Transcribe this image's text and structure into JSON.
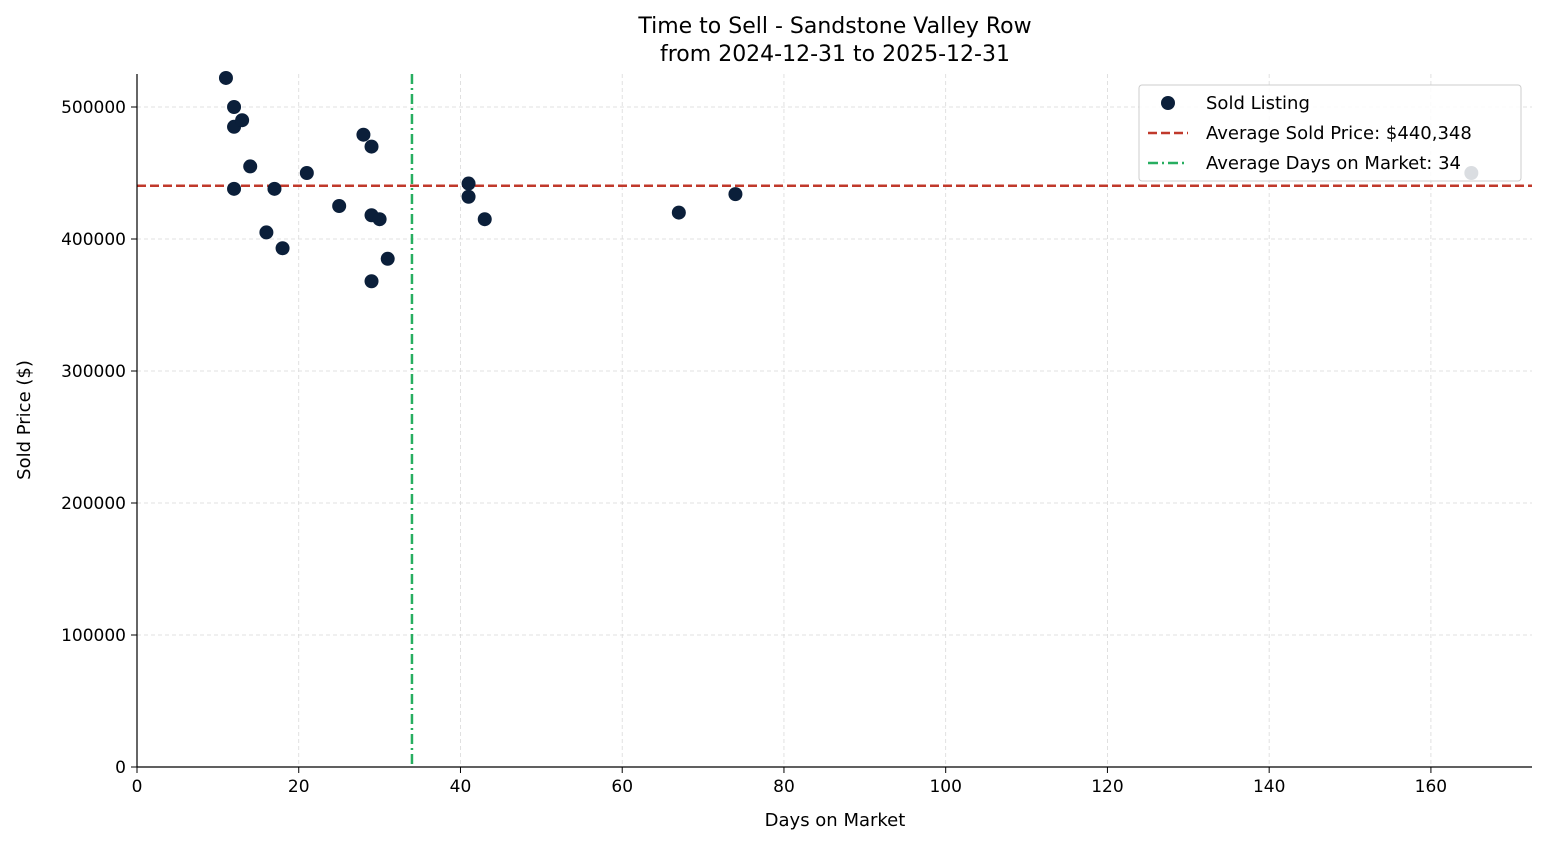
{
  "chart_data": {
    "type": "scatter",
    "title": "Time to Sell - Sandstone Valley Row",
    "subtitle": "from 2024-12-31 to 2025-12-31",
    "xlabel": "Days on Market",
    "ylabel": "Sold Price ($)",
    "xlim": [
      0,
      172.5
    ],
    "ylim": [
      0,
      525000
    ],
    "xticks": [
      0,
      20,
      40,
      60,
      80,
      100,
      120,
      140,
      160
    ],
    "yticks": [
      0,
      100000,
      200000,
      300000,
      400000,
      500000
    ],
    "grid": true,
    "legend": {
      "placement": "top-right",
      "entries": [
        {
          "label": "Sold Listing",
          "kind": "marker",
          "color": "#0b1f3a"
        },
        {
          "label": "Average Sold Price: $440,348",
          "kind": "dashed",
          "color": "#c0392b"
        },
        {
          "label": "Average Days on Market: 34",
          "kind": "dashdot",
          "color": "#27ae60"
        }
      ]
    },
    "series": [
      {
        "name": "Sold Listing",
        "color": "#0b1f3a",
        "points": [
          {
            "x": 11,
            "y": 522000
          },
          {
            "x": 12,
            "y": 500000
          },
          {
            "x": 12,
            "y": 485000
          },
          {
            "x": 12,
            "y": 438000
          },
          {
            "x": 13,
            "y": 490000
          },
          {
            "x": 14,
            "y": 455000
          },
          {
            "x": 16,
            "y": 405000
          },
          {
            "x": 17,
            "y": 438000
          },
          {
            "x": 18,
            "y": 393000
          },
          {
            "x": 21,
            "y": 450000
          },
          {
            "x": 25,
            "y": 425000
          },
          {
            "x": 28,
            "y": 479000
          },
          {
            "x": 29,
            "y": 470000
          },
          {
            "x": 29,
            "y": 418000
          },
          {
            "x": 29,
            "y": 368000
          },
          {
            "x": 30,
            "y": 415000
          },
          {
            "x": 31,
            "y": 385000
          },
          {
            "x": 41,
            "y": 442000
          },
          {
            "x": 41,
            "y": 432000
          },
          {
            "x": 43,
            "y": 415000
          },
          {
            "x": 67,
            "y": 420000
          },
          {
            "x": 74,
            "y": 434000
          },
          {
            "x": 165,
            "y": 450000
          }
        ]
      }
    ],
    "reference_lines": [
      {
        "orientation": "horizontal",
        "value": 440348,
        "color": "#c0392b",
        "style": "dashed"
      },
      {
        "orientation": "vertical",
        "value": 34,
        "color": "#27ae60",
        "style": "dashdot"
      }
    ]
  }
}
